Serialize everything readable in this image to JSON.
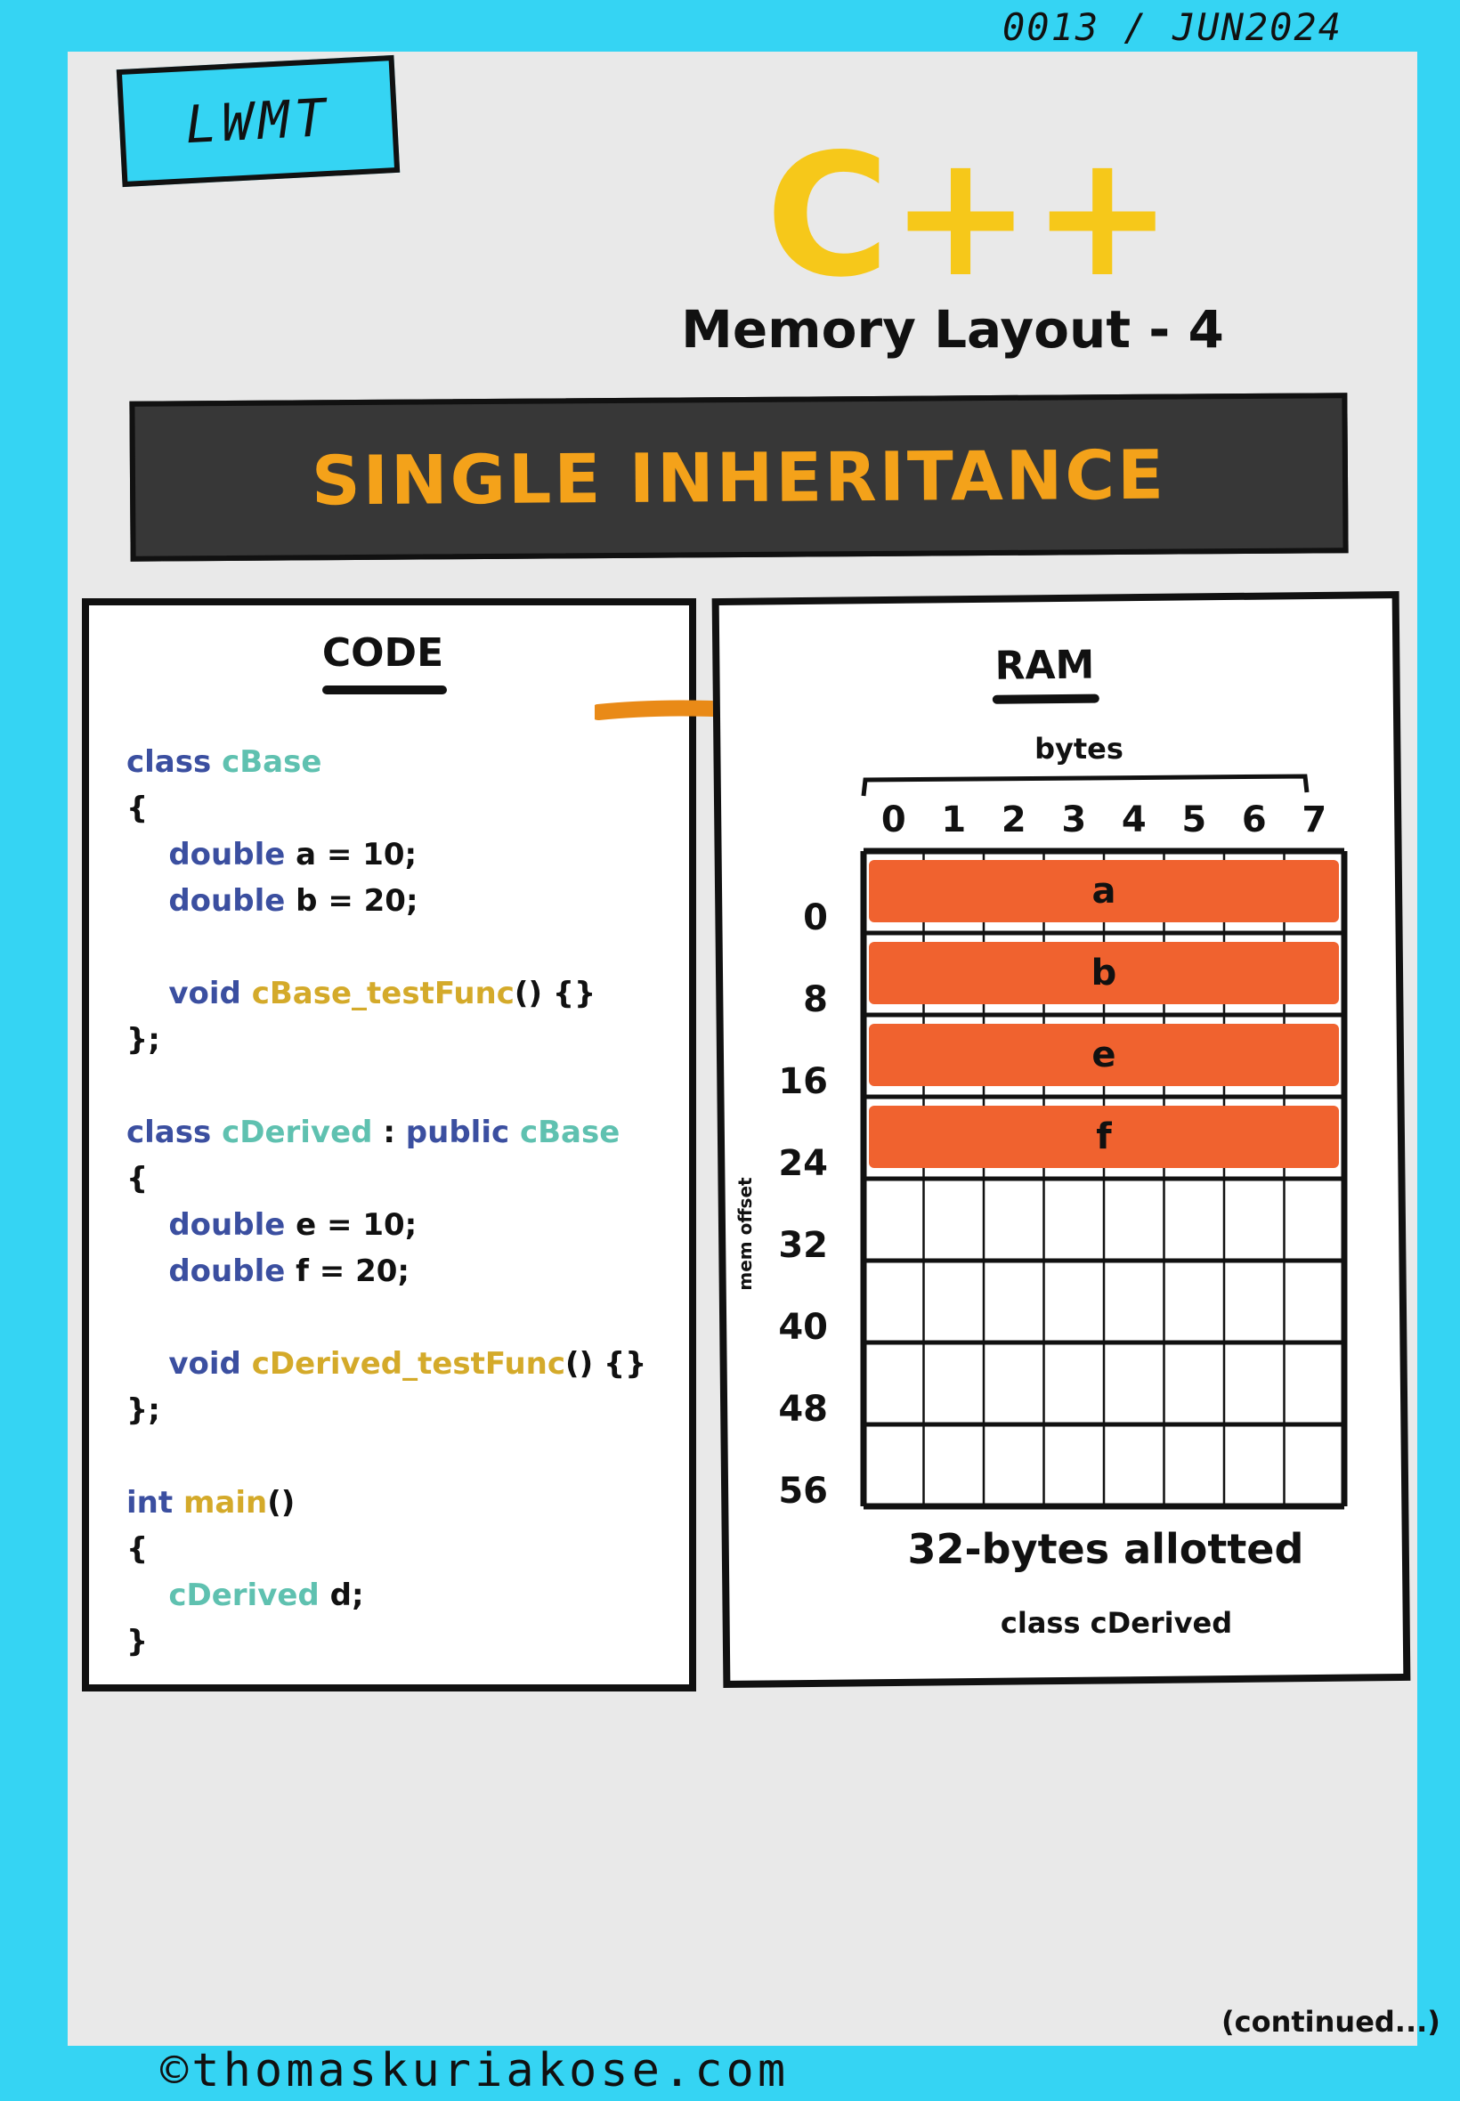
{
  "issue": "0013 / JUN2024",
  "badge": "LWMT",
  "header": {
    "language": "C++",
    "subtitle": "Memory Layout - 4"
  },
  "banner": "SINGLE INHERITANCE",
  "code_panel": {
    "title": "CODE",
    "lines": [
      [
        {
          "t": "class ",
          "c": "kw"
        },
        {
          "t": "cBase",
          "c": "ty"
        }
      ],
      [
        {
          "t": "{",
          "c": ""
        }
      ],
      [
        {
          "t": "    double ",
          "c": "kw"
        },
        {
          "t": "a = 10;",
          "c": ""
        }
      ],
      [
        {
          "t": "    double ",
          "c": "kw"
        },
        {
          "t": "b = 20;",
          "c": ""
        }
      ],
      [
        {
          "t": "",
          "c": ""
        }
      ],
      [
        {
          "t": "    void ",
          "c": "kw"
        },
        {
          "t": "cBase_testFunc",
          "c": "fn"
        },
        {
          "t": "() {}",
          "c": ""
        }
      ],
      [
        {
          "t": "};",
          "c": ""
        }
      ],
      [
        {
          "t": "",
          "c": ""
        }
      ],
      [
        {
          "t": "class ",
          "c": "kw"
        },
        {
          "t": "cDerived",
          "c": "ty"
        },
        {
          "t": " : ",
          "c": ""
        },
        {
          "t": "public ",
          "c": "kw"
        },
        {
          "t": "cBase",
          "c": "ty"
        }
      ],
      [
        {
          "t": "{",
          "c": ""
        }
      ],
      [
        {
          "t": "    double ",
          "c": "kw"
        },
        {
          "t": "e = 10;",
          "c": ""
        }
      ],
      [
        {
          "t": "    double ",
          "c": "kw"
        },
        {
          "t": "f = 20;",
          "c": ""
        }
      ],
      [
        {
          "t": "",
          "c": ""
        }
      ],
      [
        {
          "t": "    void ",
          "c": "kw"
        },
        {
          "t": "cDerived_testFunc",
          "c": "fn"
        },
        {
          "t": "() {}",
          "c": ""
        }
      ],
      [
        {
          "t": "};",
          "c": ""
        }
      ],
      [
        {
          "t": "",
          "c": ""
        }
      ],
      [
        {
          "t": "int ",
          "c": "kw"
        },
        {
          "t": "main",
          "c": "fn"
        },
        {
          "t": "()",
          "c": ""
        }
      ],
      [
        {
          "t": "{",
          "c": ""
        }
      ],
      [
        {
          "t": "    cDerived ",
          "c": "ty"
        },
        {
          "t": "d;",
          "c": ""
        }
      ],
      [
        {
          "t": "}",
          "c": ""
        }
      ]
    ]
  },
  "ram_panel": {
    "title": "RAM",
    "bytes_label": "bytes",
    "byte_columns": [
      "0",
      "1",
      "2",
      "3",
      "4",
      "5",
      "6",
      "7"
    ],
    "offset_label": "mem offset",
    "offsets": [
      "0",
      "8",
      "16",
      "24",
      "32",
      "40",
      "48",
      "56"
    ],
    "members": [
      "a",
      "b",
      "e",
      "f"
    ],
    "allotted_label": "32-bytes allotted",
    "class_label": "class cDerived"
  },
  "colors": {
    "background": "#35d4f3",
    "page": "#e9e9e9",
    "accent_yellow": "#f6c81a",
    "banner_text": "#f4a21a",
    "member_fill": "#f0622f",
    "arrow": "#e98a17"
  },
  "footer": "©thomaskuriakose.com",
  "continued": "(continued...)"
}
